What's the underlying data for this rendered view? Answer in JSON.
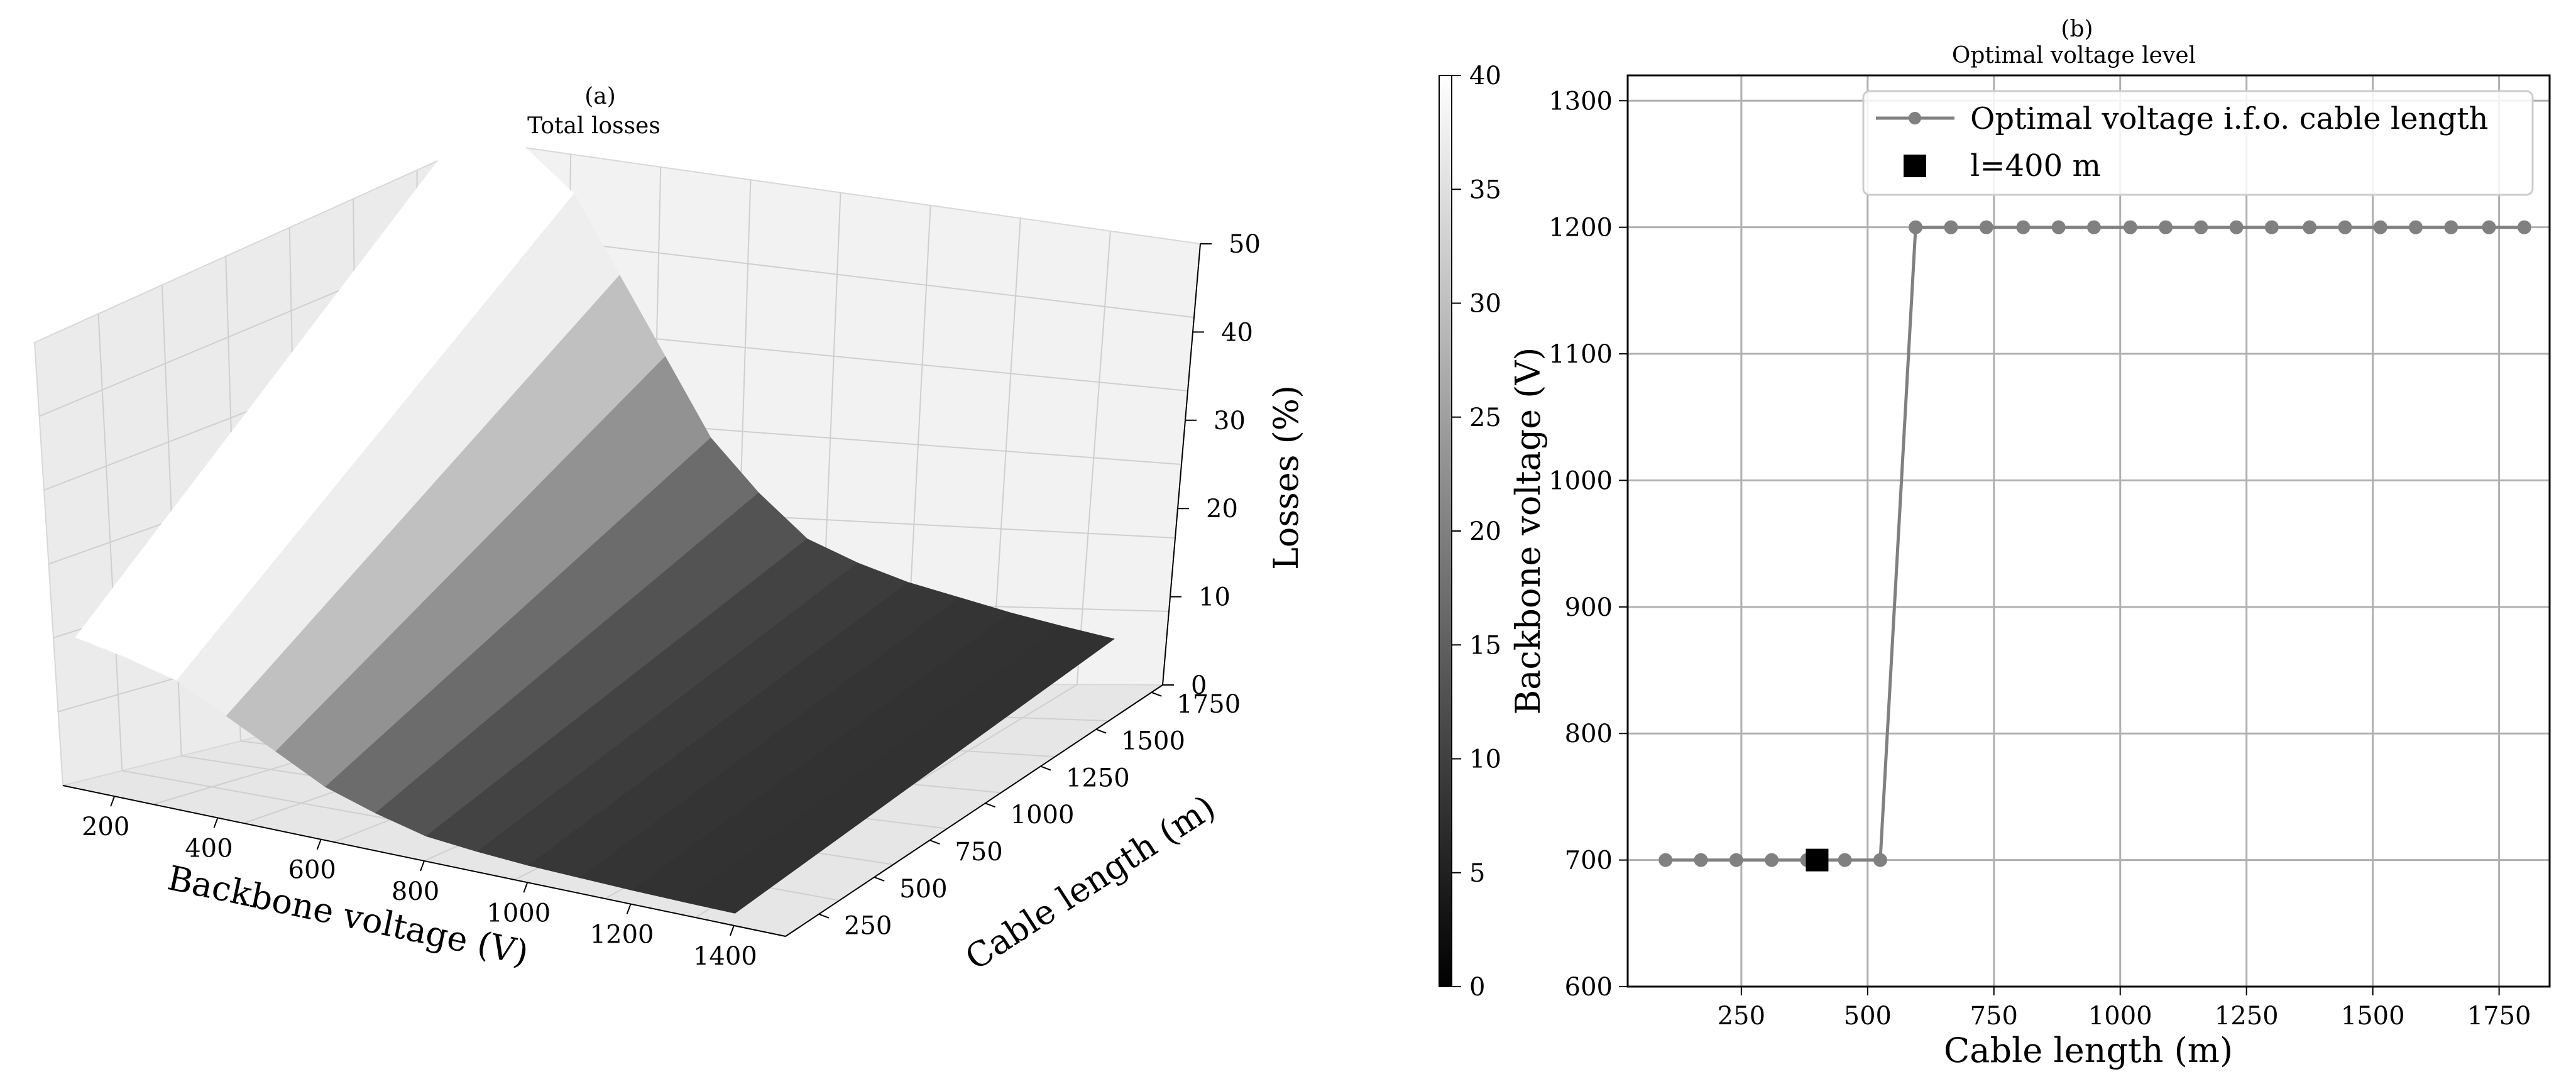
{
  "chart_data": [
    {
      "panel": "(a)",
      "type": "surface3d",
      "title": "Total losses",
      "xlabel": "Backbone voltage (V)",
      "ylabel": "Cable length (m)",
      "zlabel": "Losses (%)",
      "x_ticks": [
        "200",
        "400",
        "600",
        "800",
        "1000",
        "1200",
        "1400"
      ],
      "y_ticks": [
        "250",
        "500",
        "750",
        "1000",
        "1250",
        "1500",
        "1750"
      ],
      "z_ticks": [
        "0",
        "10",
        "20",
        "30",
        "40",
        "50"
      ],
      "xlim": [
        100,
        1500
      ],
      "ylim": [
        100,
        1800
      ],
      "zlim": [
        0,
        50
      ],
      "colormap": "gray",
      "colorbar_ticks": [
        "0",
        "5",
        "10",
        "15",
        "20",
        "25",
        "30",
        "35",
        "40"
      ],
      "colorbar_range": [
        0,
        40
      ],
      "voltage_levels": [
        100,
        200,
        300,
        400,
        500,
        600,
        700,
        800,
        900,
        1000,
        1100,
        1200,
        1300,
        1400
      ],
      "max_cable_length_losses": [
        48,
        45,
        41,
        33,
        25,
        17,
        12,
        8,
        6.5,
        5.5,
        5,
        4.5,
        4.2,
        4
      ]
    },
    {
      "panel": "(b)",
      "type": "line",
      "title": "Optimal voltage level",
      "xlabel": "Cable length (m)",
      "ylabel": "Backbone voltage (V)",
      "xlim": [
        25,
        1850
      ],
      "ylim": [
        600,
        1320
      ],
      "x_ticks": [
        "250",
        "500",
        "750",
        "1000",
        "1250",
        "1500",
        "1750"
      ],
      "y_ticks": [
        "600",
        "700",
        "800",
        "900",
        "1000",
        "1100",
        "1200",
        "1300"
      ],
      "grid": true,
      "legend_position": "top-right",
      "series": [
        {
          "name": "Optimal voltage i.f.o. cable length",
          "color": "#808080",
          "x": [
            100,
            170,
            240,
            310,
            380,
            455,
            525,
            595,
            665,
            735,
            808,
            878,
            948,
            1020,
            1090,
            1160,
            1230,
            1300,
            1375,
            1445,
            1515,
            1585,
            1655,
            1730,
            1800
          ],
          "y": [
            700,
            700,
            700,
            700,
            700,
            700,
            700,
            1200,
            1200,
            1200,
            1200,
            1200,
            1200,
            1200,
            1200,
            1200,
            1200,
            1200,
            1200,
            1200,
            1200,
            1200,
            1200,
            1200,
            1200
          ]
        },
        {
          "name": "l=400 m",
          "color": "#000000",
          "marker": "square",
          "x": [
            400
          ],
          "y": [
            700
          ]
        }
      ]
    }
  ]
}
